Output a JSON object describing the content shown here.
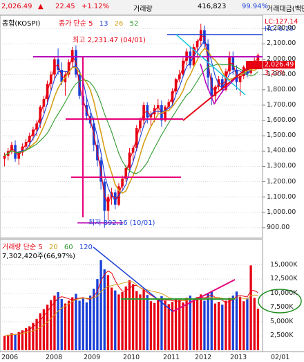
{
  "topbar": {
    "price": "2,026.49",
    "arrow": "▲",
    "change": "22.45",
    "change_pct": "+1.12%",
    "volume_label": "거래량",
    "volume_value": "416,823",
    "ratio": "99.94%",
    "amount_label": "거래대금(백만"
  },
  "price_panel": {
    "title": "종합(KOSPI)",
    "legend_prefix": "종가 단순",
    "ma_periods": [
      "5",
      "13",
      "26",
      "52"
    ],
    "ma_colors": [
      "#e60012",
      "#1a3fd6",
      "#d4a017",
      "#2e9a2e"
    ],
    "high_annotation": "최고 2,231.47 (04/01)",
    "low_annotation": "최저 892.16 (10/01)",
    "lc_label": "LC:127.14",
    "hc_label": "HC:-9.19",
    "last_price_label": "2,026.49",
    "last_pct_label": "3.29%",
    "y_ticks": [
      "2,200.00",
      "2,100.00",
      "2,000.00",
      "1,900.00",
      "1,800.00",
      "1,700.00",
      "1,600.00",
      "1,500.00",
      "1,400.00",
      "1,300.00",
      "1,200.00",
      "1,100.00",
      "1,000.00",
      "900.00"
    ]
  },
  "volume_panel": {
    "title": "거래량 단순",
    "ma_periods": [
      "5",
      "20",
      "60",
      "120"
    ],
    "ma_colors": [
      "#e60012",
      "#d4a017",
      "#2e9a2e",
      "#1a3fd6"
    ],
    "current": "7,302,420주(66,97%)",
    "y_ticks": [
      "15,000K",
      "12,500K",
      "10,000K",
      "7,500K",
      "5,000K",
      "2,500K"
    ]
  },
  "x_axis": {
    "labels": [
      "2006",
      "2008",
      "2009",
      "2010",
      "2011",
      "2012",
      "2013"
    ],
    "right_label": "02/01"
  },
  "chart_data": {
    "type": "candlestick",
    "price_ylim": [
      850,
      2260
    ],
    "volume_ylim": [
      0,
      17500
    ],
    "prices": [
      [
        1350,
        1390,
        1300,
        1370
      ],
      [
        1370,
        1420,
        1340,
        1400
      ],
      [
        1400,
        1460,
        1380,
        1440
      ],
      [
        1440,
        1470,
        1330,
        1350
      ],
      [
        1350,
        1400,
        1310,
        1390
      ],
      [
        1390,
        1450,
        1370,
        1430
      ],
      [
        1430,
        1480,
        1400,
        1460
      ],
      [
        1460,
        1520,
        1430,
        1500
      ],
      [
        1500,
        1560,
        1470,
        1540
      ],
      [
        1540,
        1600,
        1500,
        1580
      ],
      [
        1580,
        1700,
        1550,
        1690
      ],
      [
        1690,
        1760,
        1650,
        1740
      ],
      [
        1740,
        1860,
        1700,
        1840
      ],
      [
        1840,
        1920,
        1800,
        1900
      ],
      [
        1900,
        2020,
        1870,
        2000
      ],
      [
        2000,
        2070,
        1900,
        1930
      ],
      [
        1930,
        1980,
        1830,
        1850
      ],
      [
        1850,
        1920,
        1760,
        1900
      ],
      [
        1900,
        2000,
        1880,
        1980
      ],
      [
        1980,
        2080,
        1950,
        2060
      ],
      [
        2060,
        2090,
        1880,
        1900
      ],
      [
        1900,
        1930,
        1740,
        1760
      ],
      [
        1760,
        1800,
        1650,
        1700
      ],
      [
        1700,
        1750,
        1600,
        1630
      ],
      [
        1630,
        1650,
        1550,
        1580
      ],
      [
        1580,
        1620,
        1400,
        1440
      ],
      [
        1440,
        1470,
        1300,
        1340
      ],
      [
        1340,
        1360,
        1150,
        1200
      ],
      [
        1200,
        1220,
        900,
        1010
      ],
      [
        1010,
        1120,
        950,
        1100
      ],
      [
        1100,
        1160,
        1050,
        1130
      ],
      [
        1130,
        1150,
        1020,
        1050
      ],
      [
        1050,
        1190,
        1040,
        1170
      ],
      [
        1170,
        1240,
        1150,
        1220
      ],
      [
        1220,
        1310,
        1200,
        1290
      ],
      [
        1290,
        1420,
        1260,
        1390
      ],
      [
        1390,
        1440,
        1330,
        1420
      ],
      [
        1420,
        1570,
        1400,
        1550
      ],
      [
        1550,
        1620,
        1520,
        1600
      ],
      [
        1600,
        1720,
        1560,
        1700
      ],
      [
        1700,
        1720,
        1580,
        1620
      ],
      [
        1620,
        1660,
        1560,
        1640
      ],
      [
        1640,
        1700,
        1590,
        1680
      ],
      [
        1680,
        1740,
        1640,
        1700
      ],
      [
        1700,
        1730,
        1560,
        1600
      ],
      [
        1600,
        1700,
        1590,
        1690
      ],
      [
        1690,
        1740,
        1680,
        1720
      ],
      [
        1720,
        1810,
        1700,
        1790
      ],
      [
        1790,
        1880,
        1770,
        1870
      ],
      [
        1870,
        1930,
        1850,
        1900
      ],
      [
        1900,
        2010,
        1880,
        1990
      ],
      [
        1990,
        2070,
        1960,
        2050
      ],
      [
        2050,
        2080,
        1940,
        1960
      ],
      [
        1960,
        2100,
        1950,
        2080
      ],
      [
        2080,
        2130,
        2010,
        2120
      ],
      [
        2120,
        2231,
        2080,
        2190
      ],
      [
        2190,
        2220,
        2070,
        2100
      ],
      [
        2100,
        2130,
        1800,
        1880
      ],
      [
        1880,
        1910,
        1700,
        1760
      ],
      [
        1760,
        1830,
        1710,
        1820
      ],
      [
        1820,
        1890,
        1800,
        1870
      ],
      [
        1870,
        1900,
        1780,
        1800
      ],
      [
        1800,
        1940,
        1790,
        1920
      ],
      [
        1920,
        2050,
        1900,
        2020
      ],
      [
        2020,
        2050,
        1900,
        1930
      ],
      [
        1930,
        1960,
        1800,
        1850
      ],
      [
        1850,
        1900,
        1760,
        1890
      ],
      [
        1890,
        1960,
        1870,
        1950
      ],
      [
        1950,
        1980,
        1880,
        1910
      ],
      [
        1910,
        1990,
        1900,
        1970
      ],
      [
        1970,
        2010,
        1940,
        1990
      ],
      [
        1990,
        2040,
        1960,
        2026
      ]
    ],
    "volumes": [
      2500,
      2700,
      3000,
      2800,
      3200,
      3500,
      3900,
      4200,
      4800,
      5500,
      6500,
      7200,
      8000,
      8800,
      9600,
      10200,
      9000,
      8200,
      8700,
      9300,
      9900,
      8700,
      9100,
      8400,
      9600,
      10800,
      12500,
      15800,
      14200,
      13200,
      11000,
      10500,
      9800,
      10200,
      11200,
      12300,
      11600,
      10400,
      9800,
      10600,
      9700,
      8600,
      8300,
      8900,
      9500,
      8700,
      8100,
      8500,
      9100,
      8800,
      8400,
      9200,
      9600,
      8900,
      9300,
      9800,
      8700,
      9900,
      10400,
      8200,
      8500,
      8000,
      8700,
      9200,
      9600,
      10300,
      9400,
      8600,
      9100,
      14900,
      9200,
      7300
    ],
    "series": [
      {
        "name": "5",
        "values": []
      },
      {
        "name": "13",
        "values": []
      },
      {
        "name": "26",
        "values": []
      },
      {
        "name": "52",
        "values": []
      }
    ]
  }
}
